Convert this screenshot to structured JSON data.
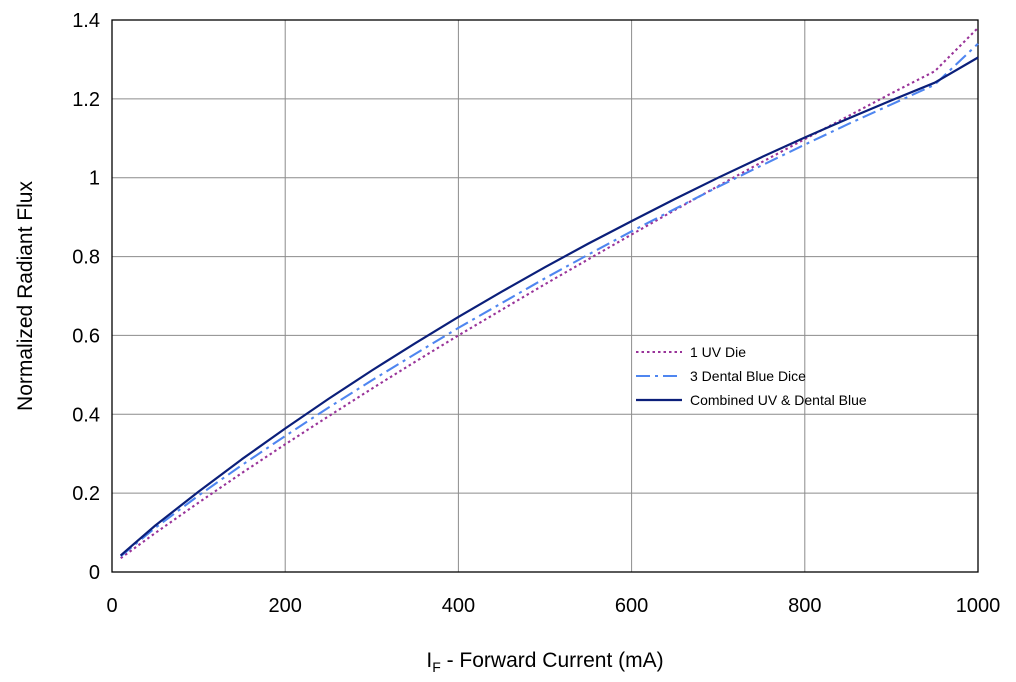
{
  "chart_data": {
    "type": "line",
    "title": "",
    "xlabel": {
      "main": "I",
      "subscript": "F",
      "rest": " - Forward Current (mA)"
    },
    "ylabel": "Normalized Radiant Flux",
    "xlim": [
      0,
      1000
    ],
    "ylim": [
      0,
      1.4
    ],
    "x_ticks": [
      0,
      200,
      400,
      600,
      800,
      1000
    ],
    "x_tick_labels": [
      "0",
      "200",
      "400",
      "600",
      "800",
      "1000"
    ],
    "y_ticks": [
      0,
      0.2,
      0.4,
      0.6,
      0.8,
      1.0,
      1.2,
      1.4
    ],
    "y_tick_labels": [
      "0",
      "0.2",
      "0.4",
      "0.6",
      "0.8",
      "1",
      "1.2",
      "1.4"
    ],
    "grid": true,
    "legend_position": "center-right",
    "series": [
      {
        "name": "1 UV Die",
        "color": "#993399",
        "style": "dotted",
        "x": [
          10,
          50,
          100,
          150,
          200,
          250,
          300,
          350,
          400,
          450,
          500,
          550,
          600,
          650,
          700,
          750,
          800,
          850,
          900,
          950,
          1000
        ],
        "y": [
          0.035,
          0.099,
          0.176,
          0.251,
          0.324,
          0.395,
          0.465,
          0.533,
          0.6,
          0.665,
          0.73,
          0.793,
          0.856,
          0.918,
          0.979,
          1.039,
          1.098,
          1.156,
          1.214,
          1.27,
          1.38
        ]
      },
      {
        "name": "3 Dental Blue Dice",
        "color": "#4f86f0",
        "style": "dashdot",
        "x": [
          10,
          50,
          100,
          150,
          200,
          250,
          300,
          350,
          400,
          450,
          500,
          550,
          600,
          650,
          700,
          750,
          800,
          850,
          900,
          950,
          1000
        ],
        "y": [
          0.04,
          0.112,
          0.194,
          0.271,
          0.345,
          0.417,
          0.486,
          0.553,
          0.619,
          0.682,
          0.745,
          0.805,
          0.864,
          0.921,
          0.977,
          1.031,
          1.084,
          1.136,
          1.186,
          1.236,
          1.34
        ]
      },
      {
        "name": "Combined UV & Dental Blue",
        "color": "#0b1f7a",
        "style": "solid",
        "x": [
          10,
          50,
          100,
          150,
          200,
          250,
          300,
          350,
          400,
          450,
          500,
          550,
          600,
          650,
          700,
          750,
          800,
          850,
          900,
          950,
          1000
        ],
        "y": [
          0.042,
          0.118,
          0.204,
          0.286,
          0.364,
          0.439,
          0.511,
          0.58,
          0.647,
          0.711,
          0.773,
          0.833,
          0.89,
          0.946,
          1.0,
          1.052,
          1.102,
          1.15,
          1.196,
          1.241,
          1.305
        ]
      }
    ]
  }
}
